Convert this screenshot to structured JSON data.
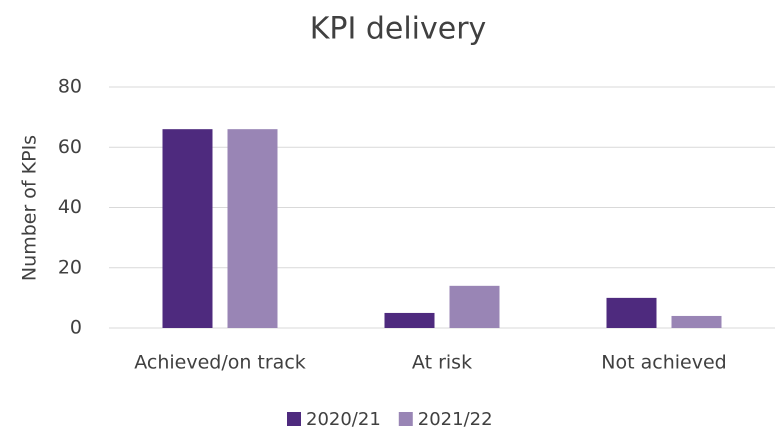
{
  "chart_data": {
    "type": "bar",
    "title": "KPI delivery",
    "y_label": "Number of KPIs",
    "categories": [
      "Achieved/on track",
      "At risk",
      "Not achieved"
    ],
    "series": [
      {
        "name": "2020/21",
        "color": "#4e2a7e",
        "values": [
          66,
          5,
          10
        ]
      },
      {
        "name": "2021/22",
        "color": "#9985b5",
        "values": [
          66,
          14,
          4
        ]
      }
    ],
    "ylim": [
      0,
      80
    ],
    "yticks": [
      0,
      20,
      40,
      60,
      80
    ],
    "grid": true,
    "legend": "bottom"
  }
}
